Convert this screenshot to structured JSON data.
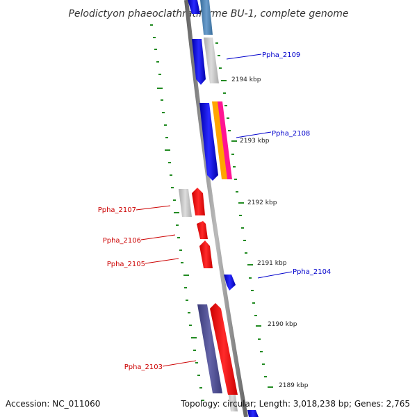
{
  "title": "Pelodictyon phaeoclathratiforme BU-1, complete genome",
  "footer": {
    "accession": "Accession: NC_011060",
    "info": "Topology: circular; Length: 3,018,238 bp; Genes: 2,765"
  },
  "ticks": [
    "2194 kbp",
    "2193 kbp",
    "2192 kbp",
    "2191 kbp",
    "2190 kbp",
    "2189 kbp"
  ],
  "genes": [
    {
      "label": "Ppha_2109",
      "color": "#0000cc"
    },
    {
      "label": "Ppha_2108",
      "color": "#0000cc"
    },
    {
      "label": "Ppha_2107",
      "color": "#cc0000"
    },
    {
      "label": "Ppha_2106",
      "color": "#cc0000"
    },
    {
      "label": "Ppha_2105",
      "color": "#cc0000"
    },
    {
      "label": "Ppha_2104",
      "color": "#0000cc"
    },
    {
      "label": "Ppha_2103",
      "color": "#cc0000"
    }
  ],
  "colors": {
    "forward_strand": "#0000ff",
    "reverse_strand": "#ff0000",
    "backbone": "#888888",
    "ticks": "#228b22",
    "gray_feature": "#bbbbbb",
    "steel_blue_feature": "#4682b4",
    "dark_slate_feature": "#4b4b8f",
    "pink_feature": "#ff1493",
    "orange_feature": "#ffa500"
  }
}
